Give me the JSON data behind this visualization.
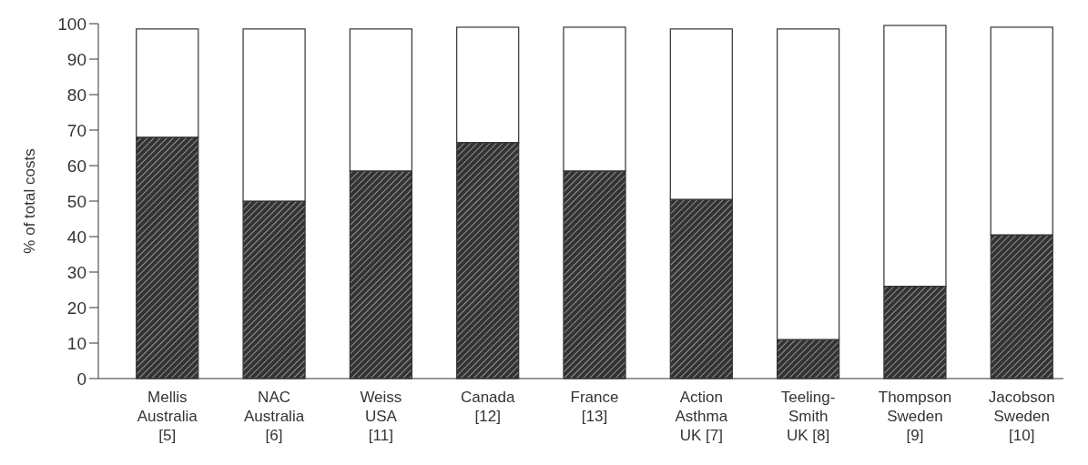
{
  "chart_data": {
    "type": "bar",
    "stacked": true,
    "ylabel": "% of total costs",
    "categories": [
      "Mellis\nAustralia\n[5]",
      "NAC\nAustralia\n[6]",
      "Weiss\nUSA\n[11]",
      "Canada\n[12]",
      "France\n[13]",
      "Action\nAsthma\nUK [7]",
      "Teeling-\nSmith\nUK [8]",
      "Thompson\nSweden\n[9]",
      "Jacobson\nSweden\n[10]"
    ],
    "series": [
      {
        "color": "#333333",
        "values": [
          68,
          50,
          58.5,
          66.5,
          58.5,
          50.5,
          11,
          26,
          40.5
        ]
      },
      {
        "color": "#ffffff",
        "values": [
          30.5,
          48.5,
          40,
          32.5,
          40.5,
          48,
          87.5,
          73.5,
          58.5
        ]
      }
    ],
    "ylim": [
      0,
      100
    ],
    "yticks": [
      0,
      10,
      20,
      30,
      40,
      50,
      60,
      70,
      80,
      90,
      100
    ],
    "grid": false
  }
}
